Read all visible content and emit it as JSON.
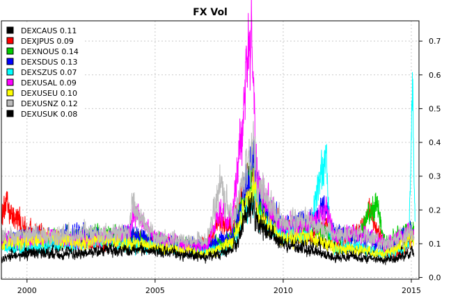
{
  "chart_data": {
    "type": "line",
    "title": "FX Vol",
    "xlim": [
      1999.0,
      2015.3
    ],
    "ylim": [
      -0.005,
      0.76
    ],
    "x_ticks": [
      2000,
      2005,
      2010,
      2015
    ],
    "x_tick_labels": [
      "2000",
      "2005",
      "2010",
      "2015"
    ],
    "y_ticks": [
      0.0,
      0.1,
      0.2,
      0.3,
      0.4,
      0.5,
      0.6,
      0.7
    ],
    "y_tick_labels": [
      "0.0",
      "0.1",
      "0.2",
      "0.3",
      "0.4",
      "0.5",
      "0.6",
      "0.7"
    ],
    "y_axis_side": "right",
    "grid": true,
    "legend_position": "top-left",
    "series": [
      {
        "name": "DEXCAUS 0.11",
        "color": "#000000",
        "x": [
          1999.0,
          2000.0,
          2001.0,
          2002.0,
          2003.0,
          2004.0,
          2005.0,
          2006.0,
          2007.0,
          2008.0,
          2008.7,
          2008.85,
          2009.0,
          2009.5,
          2010.0,
          2011.0,
          2012.0,
          2013.0,
          2014.0,
          2014.6,
          2015.1
        ],
        "y": [
          0.1,
          0.08,
          0.09,
          0.1,
          0.11,
          0.1,
          0.09,
          0.08,
          0.08,
          0.1,
          0.28,
          0.37,
          0.24,
          0.16,
          0.12,
          0.11,
          0.09,
          0.08,
          0.07,
          0.08,
          0.12
        ]
      },
      {
        "name": "DEXJPUS 0.09",
        "color": "#ff0000",
        "x": [
          1999.0,
          1999.2,
          2000.0,
          2001.0,
          2002.0,
          2003.0,
          2004.0,
          2005.0,
          2006.0,
          2007.0,
          2007.6,
          2008.0,
          2008.8,
          2009.0,
          2010.0,
          2011.0,
          2011.7,
          2012.0,
          2013.0,
          2013.4,
          2014.0,
          2014.6,
          2015.1
        ],
        "y": [
          0.18,
          0.21,
          0.14,
          0.12,
          0.11,
          0.1,
          0.12,
          0.11,
          0.09,
          0.1,
          0.17,
          0.14,
          0.33,
          0.2,
          0.14,
          0.12,
          0.16,
          0.09,
          0.14,
          0.2,
          0.08,
          0.07,
          0.13
        ]
      },
      {
        "name": "DEXNOUS 0.14",
        "color": "#00cc00",
        "x": [
          1999.0,
          2000.0,
          2001.0,
          2002.0,
          2003.0,
          2004.0,
          2005.0,
          2006.0,
          2007.0,
          2008.0,
          2008.85,
          2009.0,
          2010.0,
          2011.0,
          2012.0,
          2013.0,
          2013.6,
          2014.0,
          2015.0,
          2015.1
        ],
        "y": [
          0.12,
          0.11,
          0.12,
          0.12,
          0.13,
          0.12,
          0.11,
          0.1,
          0.09,
          0.12,
          0.34,
          0.22,
          0.14,
          0.15,
          0.13,
          0.12,
          0.23,
          0.1,
          0.15,
          0.14
        ]
      },
      {
        "name": "DEXSDUS 0.13",
        "color": "#0000ff",
        "x": [
          1999.0,
          2000.0,
          2001.0,
          2002.0,
          2003.0,
          2004.0,
          2005.0,
          2006.0,
          2007.0,
          2008.0,
          2008.85,
          2009.0,
          2010.0,
          2011.0,
          2011.6,
          2012.0,
          2013.0,
          2014.0,
          2015.0,
          2015.1
        ],
        "y": [
          0.11,
          0.12,
          0.12,
          0.13,
          0.12,
          0.13,
          0.11,
          0.1,
          0.09,
          0.12,
          0.36,
          0.25,
          0.15,
          0.16,
          0.21,
          0.13,
          0.12,
          0.09,
          0.14,
          0.12
        ]
      },
      {
        "name": "DEXSZUS 0.07",
        "color": "#00ffff",
        "x": [
          1999.0,
          2000.0,
          2001.0,
          2002.0,
          2003.0,
          2004.0,
          2005.0,
          2006.0,
          2007.0,
          2008.0,
          2008.9,
          2009.0,
          2010.0,
          2011.0,
          2011.65,
          2011.8,
          2012.0,
          2013.0,
          2014.0,
          2014.9,
          2015.05,
          2015.15
        ],
        "y": [
          0.09,
          0.09,
          0.1,
          0.1,
          0.11,
          0.1,
          0.09,
          0.08,
          0.08,
          0.09,
          0.26,
          0.18,
          0.12,
          0.13,
          0.38,
          0.15,
          0.09,
          0.09,
          0.07,
          0.09,
          0.54,
          0.15
        ]
      },
      {
        "name": "DEXUSAL 0.09",
        "color": "#ff00ff",
        "x": [
          1999.0,
          2000.0,
          2001.0,
          2002.0,
          2003.0,
          2004.0,
          2004.2,
          2005.0,
          2006.0,
          2007.0,
          2007.6,
          2008.0,
          2008.75,
          2008.9,
          2009.0,
          2009.5,
          2010.0,
          2011.0,
          2011.7,
          2012.0,
          2013.0,
          2014.0,
          2015.0,
          2015.1
        ],
        "y": [
          0.12,
          0.11,
          0.12,
          0.11,
          0.12,
          0.13,
          0.19,
          0.11,
          0.1,
          0.09,
          0.2,
          0.15,
          0.74,
          0.44,
          0.28,
          0.2,
          0.15,
          0.16,
          0.19,
          0.12,
          0.13,
          0.1,
          0.13,
          0.12
        ]
      },
      {
        "name": "DEXUSEU 0.10",
        "color": "#ffff00",
        "x": [
          1999.0,
          2000.0,
          2001.0,
          2002.0,
          2003.0,
          2004.0,
          2005.0,
          2006.0,
          2007.0,
          2008.0,
          2008.85,
          2009.0,
          2010.0,
          2011.0,
          2012.0,
          2013.0,
          2014.0,
          2015.0,
          2015.1
        ],
        "y": [
          0.1,
          0.11,
          0.12,
          0.1,
          0.11,
          0.1,
          0.09,
          0.08,
          0.07,
          0.1,
          0.28,
          0.18,
          0.11,
          0.12,
          0.09,
          0.08,
          0.07,
          0.12,
          0.11
        ]
      },
      {
        "name": "DEXUSNZ 0.12",
        "color": "#bbbbbb",
        "x": [
          1999.0,
          2000.0,
          2001.0,
          2002.0,
          2003.0,
          2004.0,
          2004.1,
          2005.0,
          2006.0,
          2007.0,
          2007.55,
          2008.0,
          2008.85,
          2009.0,
          2010.0,
          2011.0,
          2012.0,
          2013.0,
          2014.0,
          2015.0,
          2015.1
        ],
        "y": [
          0.12,
          0.13,
          0.12,
          0.13,
          0.13,
          0.13,
          0.21,
          0.12,
          0.11,
          0.11,
          0.27,
          0.17,
          0.39,
          0.27,
          0.16,
          0.17,
          0.13,
          0.13,
          0.1,
          0.13,
          0.12
        ]
      },
      {
        "name": "DEXUSUK 0.08",
        "color": "#000000",
        "x": [
          1999.0,
          2000.0,
          2001.0,
          2002.0,
          2003.0,
          2004.0,
          2005.0,
          2006.0,
          2007.0,
          2008.0,
          2008.8,
          2009.0,
          2010.0,
          2011.0,
          2012.0,
          2013.0,
          2014.0,
          2015.0,
          2015.1
        ],
        "y": [
          0.06,
          0.07,
          0.07,
          0.07,
          0.08,
          0.08,
          0.08,
          0.07,
          0.06,
          0.08,
          0.22,
          0.16,
          0.1,
          0.08,
          0.06,
          0.06,
          0.05,
          0.07,
          0.07
        ]
      }
    ]
  }
}
